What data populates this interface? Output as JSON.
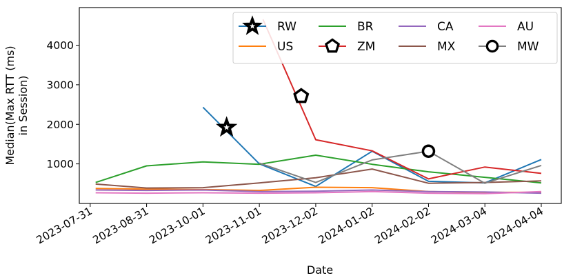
{
  "chart_data": {
    "type": "line",
    "xlabel": "Date",
    "ylabel_lines": [
      "Median(Max RTT (ms)",
      "in Session)"
    ],
    "x_ticks": [
      "2023-07-31",
      "2023-08-31",
      "2023-10-01",
      "2023-11-01",
      "2023-12-02",
      "2024-01-02",
      "2024-02-02",
      "2024-03-04",
      "2024-04-04"
    ],
    "y_ticks": [
      1000,
      2000,
      3000,
      4000
    ],
    "xlim": [
      "2023-07-25",
      "2024-04-15"
    ],
    "ylim": [
      0,
      4950
    ],
    "grid": false,
    "legend_position": "top-right",
    "legend_columns": 4,
    "series": [
      {
        "name": "RW",
        "color": "#1f77b4",
        "marker": "star",
        "points": [
          [
            "2023-10-01",
            2430
          ],
          [
            "2023-11-01",
            1000
          ],
          [
            "2023-12-02",
            430
          ],
          [
            "2024-01-02",
            1320
          ],
          [
            "2024-02-02",
            560
          ],
          [
            "2024-03-04",
            520
          ],
          [
            "2024-04-04",
            1110
          ]
        ]
      },
      {
        "name": "US",
        "color": "#ff7f0e",
        "marker": "none",
        "points": [
          [
            "2023-08-03",
            380
          ],
          [
            "2023-08-31",
            360
          ],
          [
            "2023-10-01",
            350
          ],
          [
            "2023-11-01",
            330
          ],
          [
            "2023-12-02",
            410
          ],
          [
            "2024-01-02",
            400
          ],
          [
            "2024-02-02",
            300
          ],
          [
            "2024-03-04",
            280
          ],
          [
            "2024-04-04",
            280
          ]
        ]
      },
      {
        "name": "BR",
        "color": "#2ca02c",
        "marker": "none",
        "points": [
          [
            "2023-08-03",
            530
          ],
          [
            "2023-08-31",
            950
          ],
          [
            "2023-10-01",
            1050
          ],
          [
            "2023-11-01",
            990
          ],
          [
            "2023-12-02",
            1220
          ],
          [
            "2024-01-02",
            990
          ],
          [
            "2024-02-02",
            800
          ],
          [
            "2024-03-04",
            660
          ],
          [
            "2024-04-04",
            520
          ]
        ]
      },
      {
        "name": "ZM",
        "color": "#d62728",
        "marker": "pentagon",
        "points": [
          [
            "2023-11-03",
            4650
          ],
          [
            "2023-12-02",
            1610
          ],
          [
            "2024-01-02",
            1330
          ],
          [
            "2024-02-02",
            620
          ],
          [
            "2024-03-04",
            920
          ],
          [
            "2024-04-04",
            760
          ]
        ]
      },
      {
        "name": "CA",
        "color": "#9467bd",
        "marker": "none",
        "points": [
          [
            "2023-08-03",
            340
          ],
          [
            "2023-08-31",
            330
          ],
          [
            "2023-10-01",
            340
          ],
          [
            "2023-11-01",
            300
          ],
          [
            "2023-12-02",
            310
          ],
          [
            "2024-01-02",
            340
          ],
          [
            "2024-02-02",
            300
          ],
          [
            "2024-03-04",
            290
          ],
          [
            "2024-04-04",
            260
          ]
        ]
      },
      {
        "name": "MX",
        "color": "#8c564b",
        "marker": "none",
        "points": [
          [
            "2023-08-03",
            490
          ],
          [
            "2023-08-31",
            390
          ],
          [
            "2023-10-01",
            400
          ],
          [
            "2023-11-01",
            520
          ],
          [
            "2023-12-02",
            650
          ],
          [
            "2024-01-02",
            870
          ],
          [
            "2024-02-02",
            510
          ],
          [
            "2024-03-04",
            530
          ],
          [
            "2024-04-04",
            570
          ]
        ]
      },
      {
        "name": "AU",
        "color": "#e377c2",
        "marker": "none",
        "points": [
          [
            "2023-08-03",
            270
          ],
          [
            "2023-08-31",
            260
          ],
          [
            "2023-10-01",
            270
          ],
          [
            "2023-11-01",
            260
          ],
          [
            "2023-12-02",
            270
          ],
          [
            "2024-01-02",
            300
          ],
          [
            "2024-02-02",
            260
          ],
          [
            "2024-03-04",
            250
          ],
          [
            "2024-04-04",
            300
          ]
        ]
      },
      {
        "name": "MW",
        "color": "#7f7f7f",
        "marker": "circle",
        "points": [
          [
            "2023-11-01",
            1020
          ],
          [
            "2023-12-02",
            530
          ],
          [
            "2024-01-02",
            1100
          ],
          [
            "2024-02-02",
            1320
          ],
          [
            "2024-03-04",
            510
          ],
          [
            "2024-04-04",
            960
          ]
        ]
      }
    ],
    "markers": [
      {
        "series": "RW",
        "marker": "star",
        "x": "2023-10-14",
        "y": 1920
      },
      {
        "series": "ZM",
        "marker": "pentagon",
        "x": "2023-11-24",
        "y": 2710
      },
      {
        "series": "MW",
        "marker": "circle",
        "x": "2024-02-02",
        "y": 1320
      }
    ]
  }
}
